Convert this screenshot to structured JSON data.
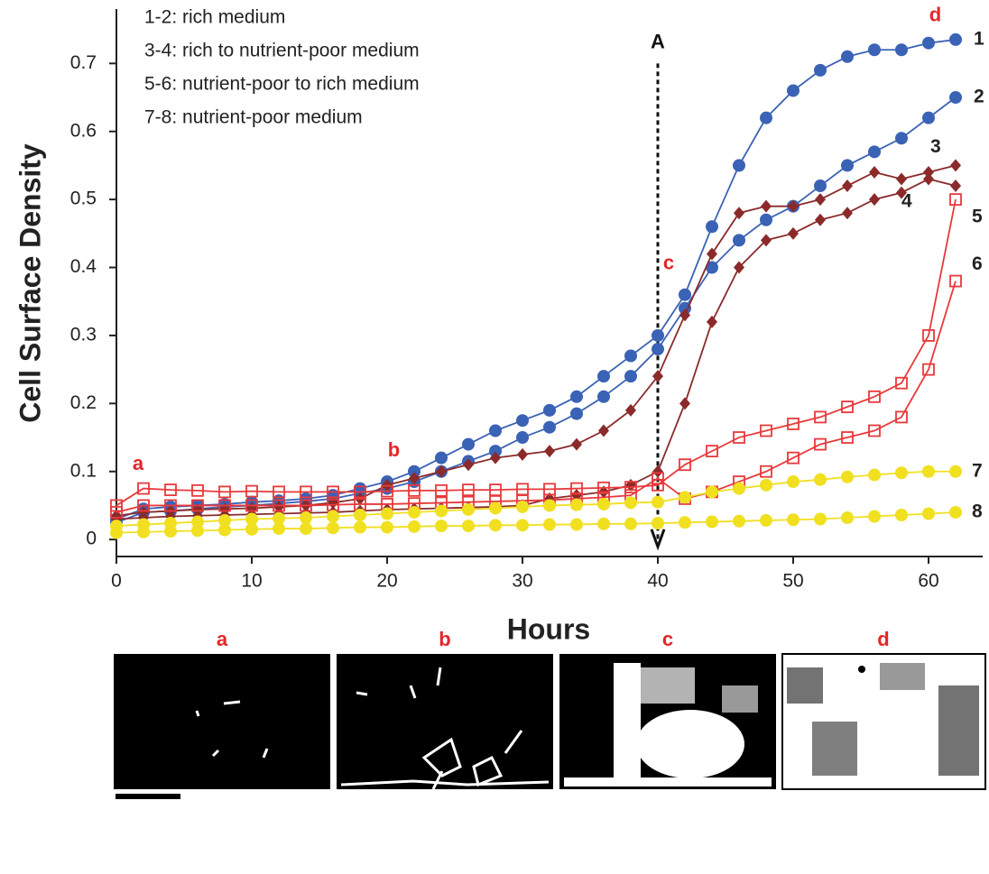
{
  "chart_data": {
    "type": "line",
    "x_label": "Hours",
    "y_label": "Cell Surface Density",
    "legend_text": [
      "1-2: rich medium",
      "3-4: rich to nutrient-poor medium",
      "5-6: nutrient-poor to rich medium",
      "7-8: nutrient-poor medium"
    ],
    "annotations": [
      "a",
      "b",
      "c",
      "d",
      "A"
    ],
    "panels": [
      "a",
      "b",
      "c",
      "d"
    ],
    "xlim": [
      0,
      64
    ],
    "ylim": [
      -0.025,
      0.78
    ],
    "xticks": [
      0,
      10,
      20,
      30,
      40,
      50,
      60
    ],
    "yticks": [
      0,
      0.1,
      0.2,
      0.3,
      0.4,
      0.5,
      0.6,
      0.7
    ],
    "x": [
      0,
      2,
      4,
      6,
      8,
      10,
      12,
      14,
      16,
      18,
      20,
      22,
      24,
      26,
      28,
      30,
      32,
      34,
      36,
      38,
      40,
      42,
      44,
      46,
      48,
      50,
      52,
      54,
      56,
      58,
      60,
      62
    ],
    "series": [
      {
        "name": "1",
        "color": "#3a62b5",
        "marker": "circle",
        "values": [
          0.03,
          0.045,
          0.048,
          0.05,
          0.052,
          0.055,
          0.057,
          0.06,
          0.065,
          0.075,
          0.085,
          0.1,
          0.12,
          0.14,
          0.16,
          0.175,
          0.19,
          0.21,
          0.24,
          0.27,
          0.3,
          0.36,
          0.46,
          0.55,
          0.62,
          0.66,
          0.69,
          0.71,
          0.72,
          0.72,
          0.73,
          0.735
        ]
      },
      {
        "name": "2",
        "color": "#3a62b5",
        "marker": "circle",
        "values": [
          0.025,
          0.04,
          0.042,
          0.045,
          0.048,
          0.05,
          0.053,
          0.056,
          0.06,
          0.068,
          0.075,
          0.085,
          0.1,
          0.115,
          0.13,
          0.15,
          0.165,
          0.185,
          0.21,
          0.24,
          0.28,
          0.34,
          0.4,
          0.44,
          0.47,
          0.49,
          0.52,
          0.55,
          0.57,
          0.59,
          0.62,
          0.65
        ]
      },
      {
        "name": "3",
        "color": "#8b2a2a",
        "marker": "diamond",
        "values": [
          0.035,
          0.04,
          0.042,
          0.044,
          0.045,
          0.046,
          0.048,
          0.05,
          0.054,
          0.06,
          0.08,
          0.09,
          0.1,
          0.11,
          0.12,
          0.125,
          0.13,
          0.14,
          0.16,
          0.19,
          0.24,
          0.33,
          0.42,
          0.48,
          0.49,
          0.49,
          0.5,
          0.52,
          0.54,
          0.53,
          0.54,
          0.55
        ]
      },
      {
        "name": "4",
        "color": "#8b2a2a",
        "marker": "diamond",
        "values": [
          0.03,
          0.032,
          0.034,
          0.035,
          0.036,
          0.037,
          0.038,
          0.039,
          0.04,
          0.042,
          0.044,
          0.045,
          0.046,
          0.047,
          0.048,
          0.05,
          0.06,
          0.065,
          0.07,
          0.08,
          0.1,
          0.2,
          0.32,
          0.4,
          0.44,
          0.45,
          0.47,
          0.48,
          0.5,
          0.51,
          0.53,
          0.52
        ]
      },
      {
        "name": "5",
        "color": "#e8393b",
        "marker": "square",
        "values": [
          0.05,
          0.075,
          0.073,
          0.072,
          0.07,
          0.071,
          0.07,
          0.07,
          0.07,
          0.07,
          0.071,
          0.072,
          0.072,
          0.073,
          0.073,
          0.074,
          0.074,
          0.075,
          0.076,
          0.077,
          0.08,
          0.11,
          0.13,
          0.15,
          0.16,
          0.17,
          0.18,
          0.195,
          0.21,
          0.23,
          0.3,
          0.5
        ]
      },
      {
        "name": "6",
        "color": "#e8393b",
        "marker": "square",
        "values": [
          0.04,
          0.05,
          0.05,
          0.05,
          0.05,
          0.05,
          0.05,
          0.05,
          0.051,
          0.052,
          0.052,
          0.053,
          0.054,
          0.055,
          0.056,
          0.057,
          0.058,
          0.06,
          0.062,
          0.065,
          0.09,
          0.06,
          0.07,
          0.085,
          0.1,
          0.12,
          0.14,
          0.15,
          0.16,
          0.18,
          0.25,
          0.38
        ]
      },
      {
        "name": "7",
        "color": "#f0e020",
        "marker": "circle",
        "values": [
          0.02,
          0.022,
          0.024,
          0.026,
          0.028,
          0.03,
          0.031,
          0.032,
          0.034,
          0.036,
          0.038,
          0.04,
          0.042,
          0.044,
          0.046,
          0.048,
          0.05,
          0.051,
          0.052,
          0.054,
          0.055,
          0.062,
          0.07,
          0.075,
          0.08,
          0.085,
          0.088,
          0.092,
          0.095,
          0.098,
          0.1,
          0.1
        ]
      },
      {
        "name": "8",
        "color": "#f0e020",
        "marker": "circle",
        "values": [
          0.01,
          0.011,
          0.012,
          0.013,
          0.014,
          0.015,
          0.016,
          0.016,
          0.017,
          0.018,
          0.018,
          0.019,
          0.02,
          0.02,
          0.021,
          0.021,
          0.022,
          0.022,
          0.023,
          0.023,
          0.024,
          0.025,
          0.026,
          0.027,
          0.028,
          0.029,
          0.03,
          0.032,
          0.034,
          0.036,
          0.038,
          0.04
        ]
      }
    ]
  }
}
